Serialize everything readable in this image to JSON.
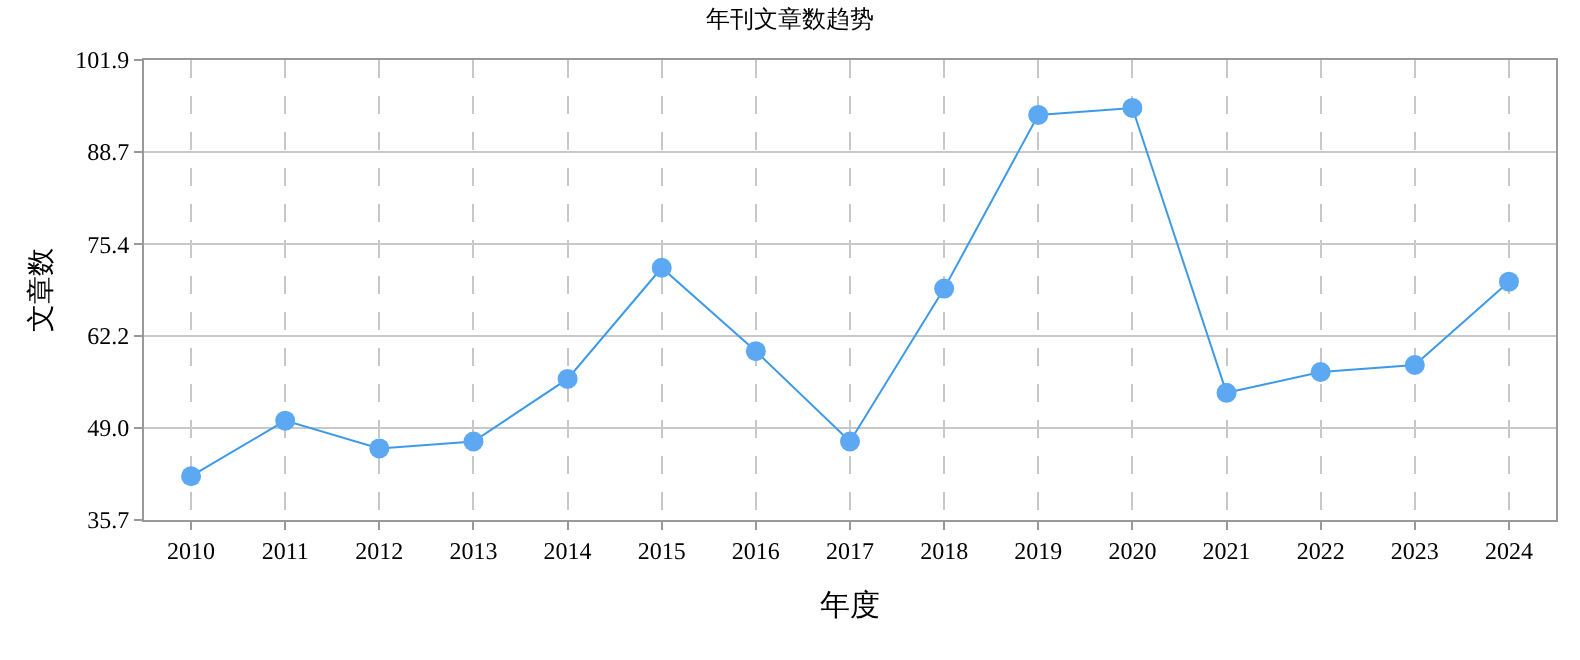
{
  "chart_data": {
    "type": "line",
    "title": "年刊文章数趋势",
    "xlabel": "年度",
    "ylabel": "文章数",
    "categories": [
      "2010",
      "2011",
      "2012",
      "2013",
      "2014",
      "2015",
      "2016",
      "2017",
      "2018",
      "2019",
      "2020",
      "2021",
      "2022",
      "2023",
      "2024"
    ],
    "series": [
      {
        "color": "#3d9ae8",
        "values": [
          42,
          50,
          46,
          47,
          56,
          72,
          60,
          47,
          69,
          94,
          95,
          54,
          57,
          58,
          70
        ]
      }
    ],
    "ylim": [
      35.7,
      101.9
    ],
    "yticks": [
      {
        "value": 35.7,
        "label": "35.7"
      },
      {
        "value": 49.0,
        "label": "49.0"
      },
      {
        "value": 62.2,
        "label": "62.2"
      },
      {
        "value": 75.4,
        "label": "75.4"
      },
      {
        "value": 88.7,
        "label": "88.7"
      },
      {
        "value": 101.9,
        "label": "101.9"
      }
    ],
    "grid": true,
    "marker": "circle",
    "line_style": "solid"
  }
}
